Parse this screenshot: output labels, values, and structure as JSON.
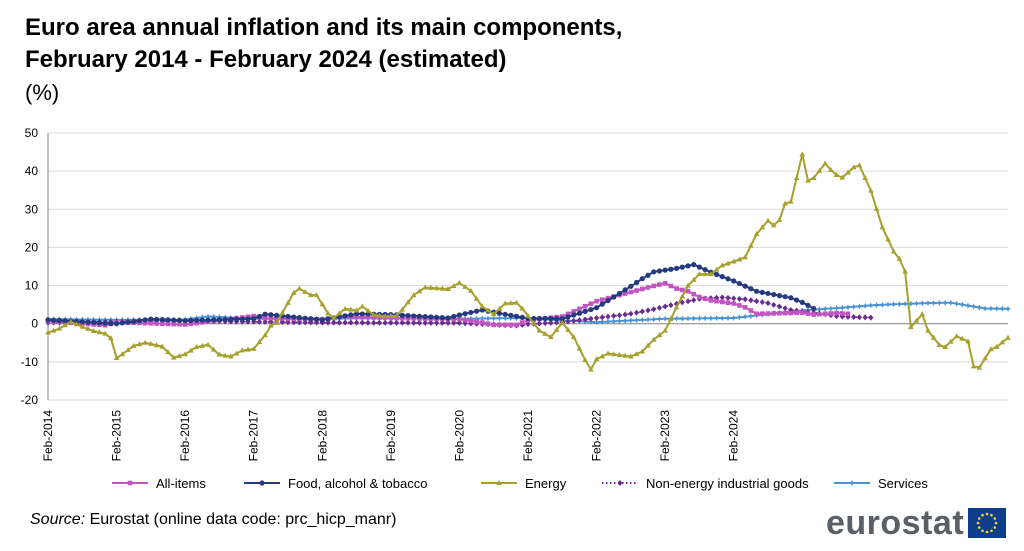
{
  "header": {
    "title_line1": "Euro area annual inflation and its main components,",
    "title_line2": "February 2014 - February 2024 (estimated)",
    "unit": "(%)"
  },
  "footer": {
    "source_label": "Source:",
    "source_text": " Eurostat (online data code: prc_hicp_manr)",
    "logo_text": "eurostat",
    "logo_icon": "eu-flag-icon"
  },
  "chart_data": {
    "type": "line",
    "ylim": [
      -20,
      50
    ],
    "yticks": [
      -20,
      -10,
      0,
      10,
      20,
      30,
      40,
      50
    ],
    "x_tick_labels": [
      "Feb-2014",
      "Feb-2015",
      "Feb-2016",
      "Feb-2017",
      "Feb-2018",
      "Feb-2019",
      "Feb-2020",
      "Feb-2021",
      "Feb-2022",
      "Feb-2023",
      "Feb-2024"
    ],
    "x_start": "Feb-2014",
    "x_end": "Feb-2024",
    "grid": "horizontal",
    "legend_position": "bottom",
    "series": [
      {
        "name": "All-items",
        "color": "#c355c3",
        "marker": "square",
        "dash": "solid",
        "keyframes": [
          [
            0,
            0.7
          ],
          [
            10,
            -0.4
          ],
          [
            12,
            0.3
          ],
          [
            14,
            0.3
          ],
          [
            18,
            0.1
          ],
          [
            24,
            -0.2
          ],
          [
            36,
            2.0
          ],
          [
            38,
            1.5
          ],
          [
            48,
            1.1
          ],
          [
            52,
            1.9
          ],
          [
            60,
            1.5
          ],
          [
            72,
            1.2
          ],
          [
            76,
            0.3
          ],
          [
            78,
            -0.3
          ],
          [
            82,
            -0.3
          ],
          [
            84,
            0.9
          ],
          [
            90,
            1.9
          ],
          [
            96,
            5.9
          ],
          [
            104,
            9.1
          ],
          [
            106,
            9.9
          ],
          [
            108,
            10.6
          ],
          [
            110,
            9.2
          ],
          [
            112,
            8.5
          ],
          [
            114,
            7.0
          ],
          [
            116,
            6.1
          ],
          [
            120,
            5.3
          ],
          [
            122,
            4.3
          ],
          [
            124,
            2.6
          ],
          [
            130,
            2.8
          ],
          [
            132,
            2.9
          ],
          [
            134,
            2.4
          ],
          [
            136,
            2.6
          ],
          [
            138,
            2.8
          ],
          [
            140,
            2.6
          ]
        ]
      },
      {
        "name": "Food, alcohol & tobacco",
        "color": "#253a7f",
        "marker": "circle",
        "dash": "solid",
        "keyframes": [
          [
            0,
            1.0
          ],
          [
            12,
            0.0
          ],
          [
            18,
            1.2
          ],
          [
            24,
            0.8
          ],
          [
            36,
            1.3
          ],
          [
            38,
            2.5
          ],
          [
            44,
            1.6
          ],
          [
            48,
            1.0
          ],
          [
            54,
            2.6
          ],
          [
            60,
            2.4
          ],
          [
            70,
            1.5
          ],
          [
            72,
            2.3
          ],
          [
            76,
            3.6
          ],
          [
            78,
            3.0
          ],
          [
            84,
            1.4
          ],
          [
            90,
            1.3
          ],
          [
            96,
            4.2
          ],
          [
            102,
            9.8
          ],
          [
            104,
            11.8
          ],
          [
            106,
            13.6
          ],
          [
            110,
            14.5
          ],
          [
            113,
            15.5
          ],
          [
            116,
            13.5
          ],
          [
            120,
            11.2
          ],
          [
            124,
            8.5
          ],
          [
            130,
            6.8
          ],
          [
            132,
            5.6
          ],
          [
            134,
            4.0
          ]
        ]
      },
      {
        "name": "Energy",
        "color": "#a7a02d",
        "marker": "triangle",
        "dash": "solid",
        "keyframes": [
          [
            0,
            -2.3
          ],
          [
            2,
            -1.3
          ],
          [
            4,
            0.5
          ],
          [
            6,
            -0.8
          ],
          [
            8,
            -1.9
          ],
          [
            10,
            -2.6
          ],
          [
            11,
            -3.8
          ],
          [
            12,
            -9.0
          ],
          [
            13,
            -8.0
          ],
          [
            15,
            -5.8
          ],
          [
            17,
            -5.0
          ],
          [
            18,
            -5.3
          ],
          [
            20,
            -6.0
          ],
          [
            22,
            -8.9
          ],
          [
            24,
            -8.0
          ],
          [
            26,
            -6.1
          ],
          [
            28,
            -5.5
          ],
          [
            30,
            -8.1
          ],
          [
            32,
            -8.6
          ],
          [
            34,
            -7.0
          ],
          [
            36,
            -6.6
          ],
          [
            38,
            -3.0
          ],
          [
            39,
            -0.5
          ],
          [
            40,
            0.2
          ],
          [
            43,
            8.1
          ],
          [
            44,
            9.2
          ],
          [
            46,
            7.5
          ],
          [
            47,
            7.5
          ],
          [
            49,
            2.7
          ],
          [
            50,
            1.5
          ],
          [
            52,
            3.9
          ],
          [
            54,
            3.5
          ],
          [
            55,
            4.5
          ],
          [
            57,
            2.3
          ],
          [
            59,
            2.0
          ],
          [
            61,
            2.1
          ],
          [
            62,
            3.7
          ],
          [
            64,
            7.5
          ],
          [
            66,
            9.5
          ],
          [
            70,
            9.1
          ],
          [
            72,
            10.7
          ],
          [
            74,
            8.6
          ],
          [
            76,
            4.5
          ],
          [
            78,
            2.5
          ],
          [
            80,
            5.3
          ],
          [
            82,
            5.5
          ],
          [
            83,
            4.0
          ],
          [
            86,
            -1.8
          ],
          [
            88,
            -3.5
          ],
          [
            90,
            0.3
          ],
          [
            92,
            -3.5
          ],
          [
            94,
            -9.5
          ],
          [
            95,
            -12.0
          ],
          [
            96,
            -9.3
          ],
          [
            98,
            -7.8
          ],
          [
            100,
            -8.2
          ],
          [
            102,
            -8.6
          ],
          [
            104,
            -7.3
          ],
          [
            106,
            -4.2
          ],
          [
            108,
            -1.8
          ],
          [
            110,
            4.3
          ],
          [
            112,
            10.0
          ],
          [
            114,
            13.0
          ],
          [
            116,
            13.0
          ],
          [
            118,
            15.3
          ],
          [
            120,
            16.3
          ],
          [
            122,
            17.4
          ],
          [
            124,
            23.5
          ],
          [
            126,
            27.0
          ],
          [
            127,
            25.8
          ],
          [
            128,
            27.2
          ],
          [
            129,
            31.5
          ],
          [
            130,
            32.0
          ],
          [
            132,
            44.4
          ],
          [
            133,
            37.5
          ],
          [
            134,
            38.2
          ],
          [
            136,
            42.0
          ],
          [
            137,
            40.3
          ],
          [
            138,
            39.0
          ],
          [
            139,
            38.3
          ],
          [
            141,
            41.0
          ],
          [
            142,
            41.5
          ],
          [
            144,
            34.9
          ],
          [
            146,
            25.3
          ],
          [
            148,
            18.9
          ],
          [
            149,
            17.0
          ],
          [
            150,
            13.7
          ],
          [
            151,
            -0.9
          ],
          [
            153,
            2.5
          ],
          [
            154,
            -1.8
          ],
          [
            156,
            -5.6
          ],
          [
            157,
            -6.1
          ],
          [
            159,
            -3.3
          ],
          [
            161,
            -4.6
          ],
          [
            162,
            -11.2
          ],
          [
            163,
            -11.5
          ],
          [
            165,
            -6.7
          ],
          [
            166,
            -6.1
          ],
          [
            168,
            -3.7
          ]
        ]
      },
      {
        "name": "Non-energy industrial goods",
        "color": "#6a2c8e",
        "marker": "diamond",
        "dash": "dotted",
        "keyframes": [
          [
            0,
            0.3
          ],
          [
            24,
            0.7
          ],
          [
            48,
            0.3
          ],
          [
            72,
            0.2
          ],
          [
            82,
            -0.5
          ],
          [
            84,
            -0.1
          ],
          [
            90,
            0.4
          ],
          [
            96,
            1.5
          ],
          [
            102,
            2.6
          ],
          [
            106,
            3.8
          ],
          [
            108,
            4.5
          ],
          [
            111,
            5.6
          ],
          [
            114,
            6.5
          ],
          [
            118,
            6.9
          ],
          [
            122,
            6.4
          ],
          [
            126,
            5.4
          ],
          [
            130,
            3.6
          ],
          [
            134,
            2.9
          ],
          [
            136,
            2.5
          ],
          [
            138,
            2.0
          ],
          [
            140,
            1.8
          ],
          [
            144,
            1.6
          ]
        ]
      },
      {
        "name": "Services",
        "color": "#4a93d4",
        "marker": "star",
        "dash": "solid",
        "keyframes": [
          [
            0,
            1.2
          ],
          [
            12,
            1.0
          ],
          [
            24,
            1.1
          ],
          [
            28,
            1.9
          ],
          [
            36,
            1.3
          ],
          [
            48,
            1.3
          ],
          [
            60,
            1.5
          ],
          [
            72,
            1.3
          ],
          [
            84,
            1.5
          ],
          [
            86,
            1.2
          ],
          [
            96,
            0.4
          ],
          [
            108,
            1.3
          ],
          [
            120,
            1.5
          ],
          [
            126,
            2.5
          ],
          [
            132,
            3.5
          ],
          [
            136,
            3.9
          ],
          [
            140,
            4.3
          ],
          [
            144,
            4.8
          ],
          [
            148,
            5.1
          ],
          [
            150,
            5.2
          ],
          [
            154,
            5.4
          ],
          [
            158,
            5.5
          ],
          [
            162,
            4.5
          ],
          [
            164,
            4.0
          ],
          [
            168,
            3.9
          ]
        ]
      }
    ]
  }
}
